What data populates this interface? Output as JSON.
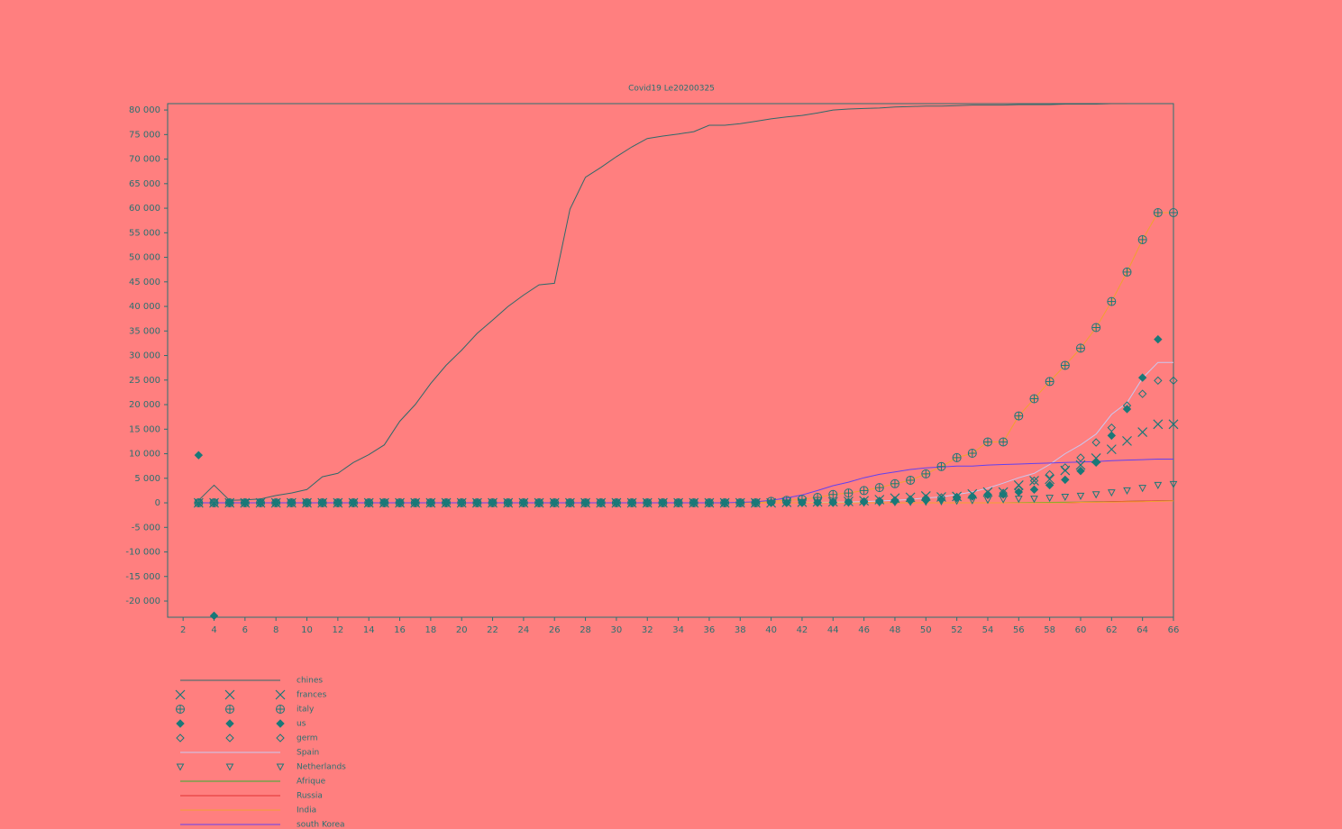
{
  "chart_data": {
    "type": "line",
    "title": "Covid19 Le20200325",
    "x": [
      3,
      4,
      5,
      6,
      7,
      8,
      9,
      10,
      11,
      12,
      13,
      14,
      15,
      16,
      17,
      18,
      19,
      20,
      21,
      22,
      23,
      24,
      25,
      26,
      27,
      28,
      29,
      30,
      31,
      32,
      33,
      34,
      35,
      36,
      37,
      38,
      39,
      40,
      41,
      42,
      43,
      44,
      45,
      46,
      47,
      48,
      49,
      50,
      51,
      52,
      53,
      54,
      55,
      56,
      57,
      58,
      59,
      60,
      61,
      62,
      63,
      64,
      65,
      66
    ],
    "xlim": [
      1,
      66
    ],
    "xticks": [
      2,
      4,
      6,
      8,
      10,
      12,
      14,
      16,
      18,
      20,
      22,
      24,
      26,
      28,
      30,
      32,
      34,
      36,
      38,
      40,
      42,
      44,
      46,
      48,
      50,
      52,
      54,
      56,
      58,
      60,
      62,
      64,
      66
    ],
    "ylim": [
      -23300,
      81300
    ],
    "yticks": [
      {
        "value": -20000,
        "label": "-20 000"
      },
      {
        "value": -15000,
        "label": "-15 000"
      },
      {
        "value": -10000,
        "label": "-10 000"
      },
      {
        "value": -5000,
        "label": "-5 000"
      },
      0,
      {
        "value": 5000,
        "label": "5 000"
      },
      {
        "value": 10000,
        "label": "10 000"
      },
      {
        "value": 15000,
        "label": "15 000"
      },
      {
        "value": 20000,
        "label": "20 000"
      },
      {
        "value": 25000,
        "label": "25 000"
      },
      {
        "value": 30000,
        "label": "30 000"
      },
      {
        "value": 35000,
        "label": "35 000"
      },
      {
        "value": 40000,
        "label": "40 000"
      },
      {
        "value": 45000,
        "label": "45 000"
      },
      {
        "value": 50000,
        "label": "50 000"
      },
      {
        "value": 55000,
        "label": "55 000"
      },
      {
        "value": 60000,
        "label": "60 000"
      },
      {
        "value": 65000,
        "label": "65 000"
      },
      {
        "value": 70000,
        "label": "70 000"
      },
      {
        "value": 75000,
        "label": "75 000"
      },
      {
        "value": 80000,
        "label": "80 000"
      }
    ],
    "series": [
      {
        "name": "chines",
        "color": "#2f6a6a",
        "values": [
          500,
          3600,
          500,
          600,
          800,
          1500,
          2000,
          2700,
          5300,
          6000,
          8200,
          9800,
          11800,
          16600,
          20000,
          24300,
          28000,
          31100,
          34500,
          37200,
          40000,
          42300,
          44400,
          44700,
          59800,
          66300,
          68300,
          70500,
          72500,
          74200,
          74700,
          75100,
          75600,
          76900,
          76900,
          77200,
          77700,
          78200,
          78600,
          78900,
          79400,
          80000,
          80200,
          80300,
          80400,
          80600,
          80700,
          80800,
          80800,
          80900,
          81000,
          81000,
          81000,
          81100,
          81100,
          81100,
          81200,
          81200,
          81200,
          81300,
          81300,
          null,
          null,
          null
        ]
      },
      {
        "name": "frances",
        "color": "#1a7878",
        "marker": "x",
        "values": [
          0,
          0,
          0,
          0,
          0,
          0,
          0,
          0,
          0,
          0,
          0,
          0,
          0,
          0,
          0,
          0,
          0,
          0,
          0,
          0,
          0,
          0,
          0,
          0,
          0,
          0,
          0,
          0,
          0,
          0,
          0,
          0,
          0,
          0,
          0,
          0,
          0,
          0,
          100,
          130,
          190,
          210,
          280,
          420,
          650,
          950,
          1130,
          1400,
          1200,
          1300,
          1800,
          2200,
          2200,
          3600,
          4500,
          4800,
          6600,
          7700,
          9100,
          10900,
          12600,
          14400,
          16000,
          16000
        ]
      },
      {
        "name": "italy",
        "color": "#1a7878",
        "marker": "circle-plus",
        "line_color": "#f0a030",
        "values": [
          0,
          0,
          0,
          0,
          0,
          0,
          0,
          0,
          0,
          0,
          0,
          0,
          0,
          0,
          0,
          0,
          0,
          0,
          0,
          0,
          0,
          0,
          0,
          0,
          0,
          0,
          0,
          0,
          0,
          0,
          0,
          0,
          0,
          0,
          0,
          0,
          0,
          300,
          500,
          700,
          1100,
          1700,
          2000,
          2500,
          3100,
          3900,
          4600,
          5900,
          7400,
          9200,
          10100,
          12400,
          12400,
          17700,
          21200,
          24700,
          28000,
          31500,
          35700,
          41000,
          47000,
          53600,
          59100,
          59100
        ]
      },
      {
        "name": "us",
        "color": "#1a7878",
        "marker": "diamond-filled",
        "values": [
          9700,
          -23000,
          0,
          0,
          0,
          0,
          0,
          0,
          0,
          0,
          0,
          0,
          0,
          0,
          0,
          0,
          0,
          0,
          0,
          0,
          0,
          0,
          0,
          0,
          0,
          0,
          0,
          0,
          0,
          0,
          0,
          0,
          0,
          0,
          0,
          0,
          0,
          0,
          0,
          0,
          0,
          0,
          100,
          150,
          200,
          300,
          400,
          500,
          700,
          1000,
          1300,
          1700,
          1700,
          2200,
          2700,
          3600,
          4700,
          6500,
          8200,
          13700,
          19100,
          25500,
          33300,
          null
        ]
      },
      {
        "name": "germ",
        "color": "#1a7878",
        "marker": "diamond",
        "values": [
          0,
          0,
          0,
          0,
          0,
          0,
          0,
          0,
          0,
          0,
          0,
          0,
          0,
          0,
          0,
          0,
          0,
          0,
          0,
          0,
          0,
          0,
          0,
          0,
          0,
          0,
          0,
          0,
          0,
          0,
          0,
          0,
          0,
          0,
          0,
          0,
          0,
          0,
          0,
          0,
          100,
          150,
          200,
          300,
          400,
          500,
          700,
          900,
          1100,
          1200,
          1300,
          1600,
          2000,
          2700,
          4500,
          5800,
          7200,
          9200,
          12300,
          15300,
          19800,
          22200,
          24900,
          24900
        ]
      },
      {
        "name": "Spain",
        "color": "#c8c8f0",
        "values": [
          0,
          0,
          0,
          0,
          0,
          0,
          0,
          0,
          0,
          0,
          0,
          0,
          0,
          0,
          0,
          0,
          0,
          0,
          0,
          0,
          0,
          0,
          0,
          0,
          0,
          0,
          0,
          0,
          0,
          0,
          0,
          0,
          0,
          0,
          0,
          0,
          0,
          0,
          0,
          0,
          100,
          120,
          170,
          230,
          400,
          500,
          700,
          1000,
          1200,
          1700,
          2200,
          3000,
          4000,
          5100,
          6000,
          7800,
          10000,
          11800,
          14000,
          18000,
          20400,
          25400,
          28600,
          28600
        ]
      },
      {
        "name": "Netherlands",
        "color": "#1a7878",
        "marker": "triangle-down",
        "values": [
          0,
          0,
          0,
          0,
          0,
          0,
          0,
          0,
          0,
          0,
          0,
          0,
          0,
          0,
          0,
          0,
          0,
          0,
          0,
          0,
          0,
          0,
          0,
          0,
          0,
          0,
          0,
          0,
          0,
          0,
          0,
          0,
          0,
          0,
          0,
          0,
          0,
          0,
          0,
          0,
          0,
          0,
          0,
          0,
          50,
          100,
          150,
          200,
          300,
          400,
          500,
          600,
          700,
          800,
          800,
          1000,
          1200,
          1400,
          1700,
          2100,
          2500,
          3000,
          3600,
          3800
        ]
      },
      {
        "name": "Afrique",
        "color": "#30b030",
        "values": [
          0,
          0,
          0,
          0,
          0,
          0,
          0,
          0,
          0,
          0,
          0,
          0,
          0,
          0,
          0,
          0,
          0,
          0,
          0,
          0,
          0,
          0,
          0,
          0,
          0,
          0,
          0,
          0,
          0,
          0,
          0,
          0,
          0,
          0,
          0,
          0,
          0,
          0,
          0,
          0,
          0,
          0,
          0,
          0,
          0,
          0,
          0,
          0,
          0,
          0,
          0,
          0,
          0,
          50,
          80,
          100,
          120,
          150,
          200,
          250,
          300,
          350,
          400,
          450
        ]
      },
      {
        "name": "Russia",
        "color": "#e03030",
        "values": [
          0,
          0,
          0,
          0,
          0,
          0,
          0,
          0,
          0,
          0,
          0,
          0,
          0,
          0,
          0,
          0,
          0,
          0,
          0,
          0,
          0,
          0,
          0,
          0,
          0,
          0,
          0,
          0,
          0,
          0,
          0,
          0,
          0,
          0,
          0,
          0,
          0,
          0,
          0,
          0,
          0,
          0,
          0,
          0,
          0,
          0,
          0,
          0,
          0,
          0,
          0,
          0,
          0,
          0,
          0,
          0,
          0,
          100,
          150,
          250,
          300,
          350,
          400,
          450
        ]
      },
      {
        "name": "India",
        "color": "#f0a030",
        "values": [
          0,
          0,
          0,
          0,
          0,
          0,
          0,
          0,
          0,
          0,
          0,
          0,
          0,
          0,
          0,
          0,
          0,
          0,
          0,
          0,
          0,
          0,
          0,
          0,
          0,
          0,
          0,
          0,
          0,
          0,
          0,
          0,
          0,
          0,
          0,
          0,
          0,
          0,
          0,
          0,
          0,
          0,
          0,
          0,
          0,
          0,
          0,
          0,
          0,
          0,
          0,
          0,
          0,
          0,
          0,
          0,
          0,
          100,
          120,
          150,
          200,
          250,
          300,
          400
        ]
      },
      {
        "name": "south Korea",
        "color": "#6040f0",
        "values": [
          0,
          0,
          0,
          0,
          0,
          0,
          0,
          0,
          0,
          0,
          0,
          0,
          0,
          0,
          0,
          0,
          0,
          0,
          0,
          0,
          0,
          0,
          0,
          0,
          0,
          0,
          0,
          0,
          0,
          0,
          0,
          0,
          0,
          0,
          0,
          100,
          200,
          500,
          1000,
          1600,
          2500,
          3500,
          4200,
          5100,
          5800,
          6300,
          6800,
          7100,
          7300,
          7500,
          7500,
          7700,
          7800,
          7900,
          8000,
          8100,
          8200,
          8300,
          8400,
          8600,
          8700,
          8800,
          8900,
          8900
        ]
      }
    ]
  }
}
